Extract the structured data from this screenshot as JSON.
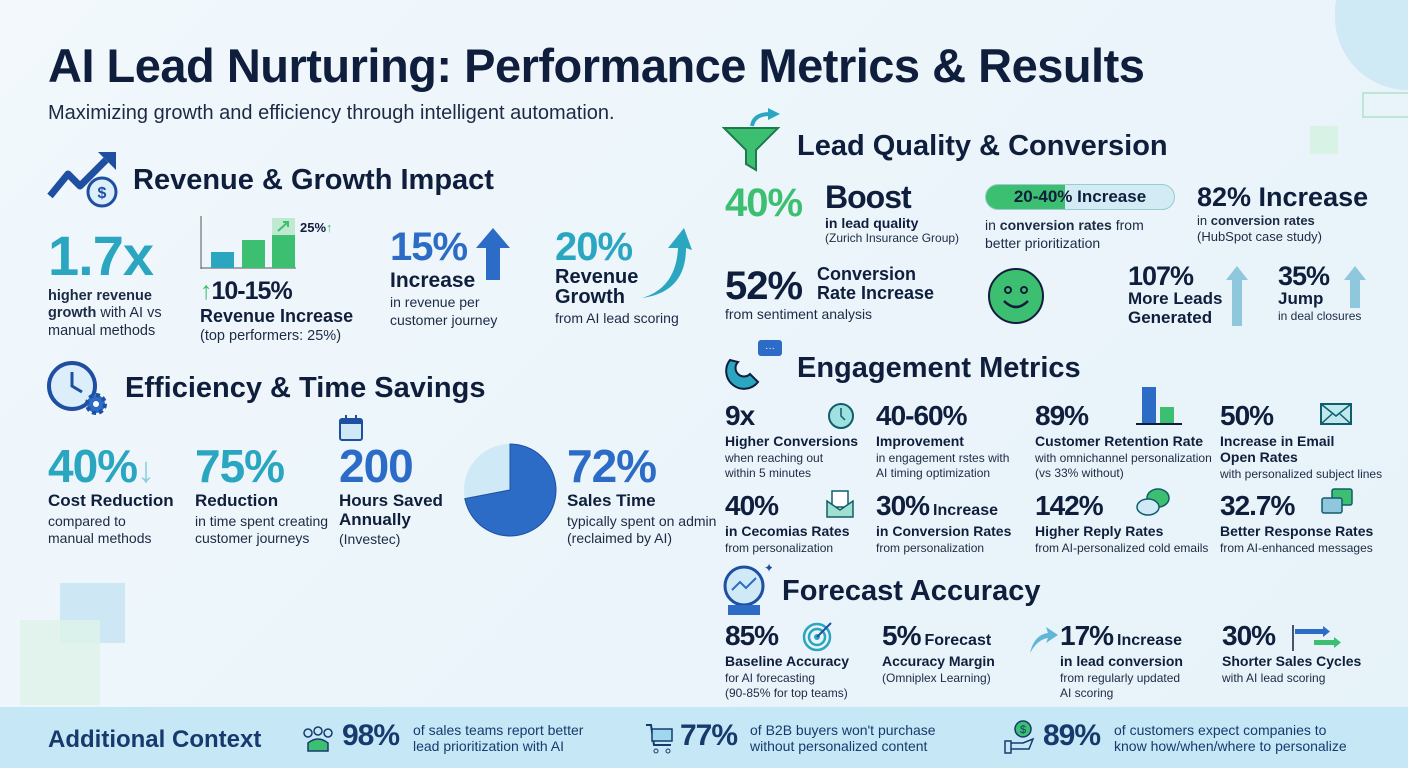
{
  "header": {
    "title": "AI Lead Nurturing: Performance Metrics & Results",
    "subtitle": "Maximizing growth and efficiency through intelligent automation."
  },
  "colors": {
    "navy": "#0f1e3c",
    "teal": "#2aa6c0",
    "green": "#3dbf72",
    "blue": "#2c6cc6",
    "bottom_bar": "#c6e8f6"
  },
  "revenue": {
    "heading": "Revenue & Growth Impact",
    "icon": "trending-up-dollar-icon",
    "s1": {
      "value": "1.7x",
      "l1a": "higher revenue",
      "l2a": "growth",
      "l2b": " with AI vs",
      "l3": "manual methods"
    },
    "s2": {
      "bar_values": [
        1,
        2,
        3
      ],
      "bar_tag": "25%",
      "value": "10-15%",
      "label": "Revenue Increase",
      "sub": "(top performers: 25%)"
    },
    "s3": {
      "value": "15%",
      "label": "Increase",
      "sub1": "in revenue per",
      "sub2": "customer journey"
    },
    "s4": {
      "value": "20%",
      "label1": "Revenue",
      "label2": "Growth",
      "sub": "from AI lead scoring"
    }
  },
  "efficiency": {
    "heading": "Efficiency & Time Savings",
    "icon": "clock-gear-icon",
    "s1": {
      "value": "40%",
      "label": "Cost Reduction",
      "sub1": "compared to",
      "sub2": "manual methods"
    },
    "s2": {
      "value": "75%",
      "label": "Reduction",
      "sub1": "in time spent creating",
      "sub2": "customer journeys"
    },
    "s3": {
      "value": "200",
      "label1": "Hours Saved",
      "label2": "Annually",
      "sub": "(Investec)"
    },
    "s4": {
      "value": "72%",
      "pie_fraction": 0.72,
      "label": "Sales Time",
      "sub1": "typically spent on admin",
      "sub2": "(reclaimed by AI)"
    }
  },
  "lead_quality": {
    "heading": "Lead Quality & Conversion",
    "icon": "funnel-icon",
    "s1": {
      "value": "40%",
      "label": "Boost",
      "sub1": "in lead quality",
      "sub2": "(Zurich Insurance Group)"
    },
    "s2": {
      "pill": "20-40% Increase",
      "sub1a": "in ",
      "sub1b": "conversion rates",
      "sub1c": " from",
      "sub2": "better prioritization"
    },
    "s3": {
      "value": "82% Increase",
      "sub1a": "in ",
      "sub1b": "conversion rates",
      "sub2": "(HubSpot case study)"
    },
    "s4": {
      "value": "52%",
      "label1": "Conversion",
      "label2": "Rate Increase",
      "sub": "from sentiment analysis"
    },
    "s5": {
      "value": "107%",
      "label1": "More Leads",
      "label2": "Generated"
    },
    "s6": {
      "value": "35%",
      "label": "Jump",
      "sub": "in deal closures"
    }
  },
  "engagement": {
    "heading": "Engagement Metrics",
    "icon": "magnet-chat-icon",
    "items": [
      {
        "value": "9x",
        "label": "Higher Conversions",
        "sub1": "when reaching out",
        "sub2": "within 5 minutes"
      },
      {
        "value": "40-60%",
        "label": "Improvement",
        "sub1": "in engagement rstes with",
        "sub2": "AI timing optimization"
      },
      {
        "value": "89%",
        "label": "Customer Retention Rate",
        "sub1": "with omnichannel personalization",
        "sub2": "(vs 33% without)"
      },
      {
        "value": "50%",
        "label": "Increase in Email",
        "label2": "Open Rates",
        "sub1": "with personalized subject lines"
      },
      {
        "value": "40%",
        "label": "in Cecomias Rates",
        "sub1": "from personalization"
      },
      {
        "value": "30%",
        "value_suffix": "Increase",
        "label": "in Conversion Rates",
        "sub1": "from personalization"
      },
      {
        "value": "142%",
        "label": "Higher Reply Rates",
        "sub1": "from AI-personalized cold emails"
      },
      {
        "value": "32.7%",
        "label": "Better Response Rates",
        "sub1": "from AI-enhanced messages"
      }
    ]
  },
  "forecast": {
    "heading": "Forecast Accuracy",
    "icon": "crystal-ball-icon",
    "items": [
      {
        "value": "85%",
        "label": "Baseline Accuracy",
        "sub1": "for AI forecasting",
        "sub2": "(90-85% for top teams)"
      },
      {
        "value": "5%",
        "value_suffix": "Forecast",
        "label": "Accuracy Margin",
        "sub1": "(Omniplex Learning)"
      },
      {
        "value": "17%",
        "value_suffix": "Increase",
        "label": "in lead conversion",
        "sub1": "from regularly updated",
        "sub2": "AI scoring"
      },
      {
        "value": "30%",
        "label": "Shorter Sales Cycles",
        "sub1": "with AI lead scoring"
      }
    ]
  },
  "context": {
    "heading": "Additional Context",
    "items": [
      {
        "icon": "people-icon",
        "value": "98%",
        "t1": "of sales teams report better",
        "t2": "lead prioritization with AI"
      },
      {
        "icon": "cart-icon",
        "value": "77%",
        "t1": "of B2B buyers won't purchase",
        "t2": "without personalized content"
      },
      {
        "icon": "hand-dollar-icon",
        "value": "89%",
        "t1": "of customers expect companies to",
        "t2": "know how/when/where to personalize"
      }
    ]
  }
}
